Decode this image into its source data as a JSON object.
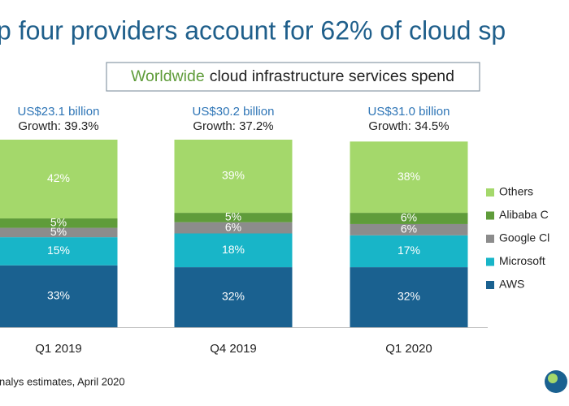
{
  "chart_data": {
    "type": "stacked_bar",
    "title": "p four providers account for 62% of cloud sp",
    "subtitle_parts": [
      "Worldwide",
      "cloud infrastructure services spend"
    ],
    "categories": [
      "Q1 2019",
      "Q4 2019",
      "Q1 2020"
    ],
    "annotations": [
      [
        "US$23.1 billion",
        "Growth: 39.3%"
      ],
      [
        "US$30.2 billion",
        "Growth: 37.2%"
      ],
      [
        "US$31.0 billion",
        "Growth: 34.5%"
      ]
    ],
    "series": [
      {
        "name": "AWS",
        "color": "#1a6190",
        "values": [
          33,
          32,
          32
        ],
        "value_labels": [
          "33%",
          "32%",
          "32%"
        ]
      },
      {
        "name": "Microsoft",
        "color": "#18b5c8",
        "values": [
          15,
          18,
          17
        ],
        "value_labels": [
          "15%",
          "18%",
          "17%"
        ]
      },
      {
        "name": "Google Cl",
        "color": "#8c8c8c",
        "values": [
          5,
          6,
          6
        ],
        "value_labels": [
          "5%",
          "6%",
          "6%"
        ]
      },
      {
        "name": "Alibaba C",
        "color": "#5f9c3a",
        "values": [
          5,
          5,
          6
        ],
        "value_labels": [
          "5%",
          "5%",
          "6%"
        ]
      },
      {
        "name": "Others",
        "color": "#a4d86b",
        "values": [
          42,
          39,
          38
        ],
        "value_labels": [
          "42%",
          "39%",
          "38%"
        ]
      }
    ],
    "ylim": [
      0,
      100
    ],
    "footer": "nalys estimates, April 2020"
  }
}
